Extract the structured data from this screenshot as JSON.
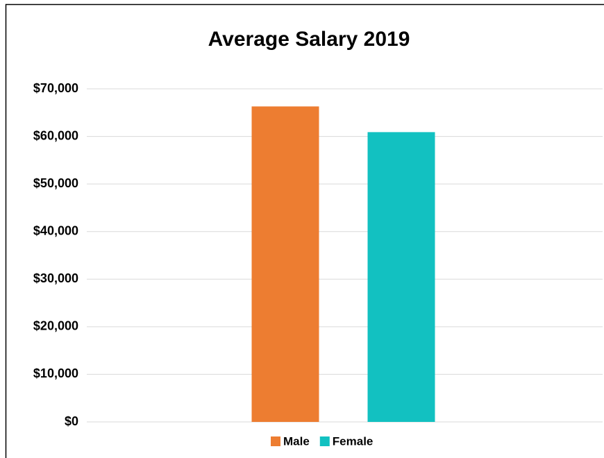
{
  "chart_data": {
    "type": "bar",
    "title": "Average Salary 2019",
    "categories": [
      null
    ],
    "series": [
      {
        "name": "Male",
        "color": "#ed7d31",
        "values": [
          66300
        ]
      },
      {
        "name": "Female",
        "color": "#12c1c1",
        "values": [
          60900
        ]
      }
    ],
    "ylim": [
      0,
      70000
    ],
    "yticks": [
      {
        "value": 0,
        "label": "$0"
      },
      {
        "value": 10000,
        "label": "$10,000"
      },
      {
        "value": 20000,
        "label": "$20,000"
      },
      {
        "value": 30000,
        "label": "$30,000"
      },
      {
        "value": 40000,
        "label": "$40,000"
      },
      {
        "value": 50000,
        "label": "$50,000"
      },
      {
        "value": 60000,
        "label": "$60,000"
      },
      {
        "value": 70000,
        "label": "$70,000"
      }
    ],
    "grid": true,
    "legend": "bottom"
  }
}
